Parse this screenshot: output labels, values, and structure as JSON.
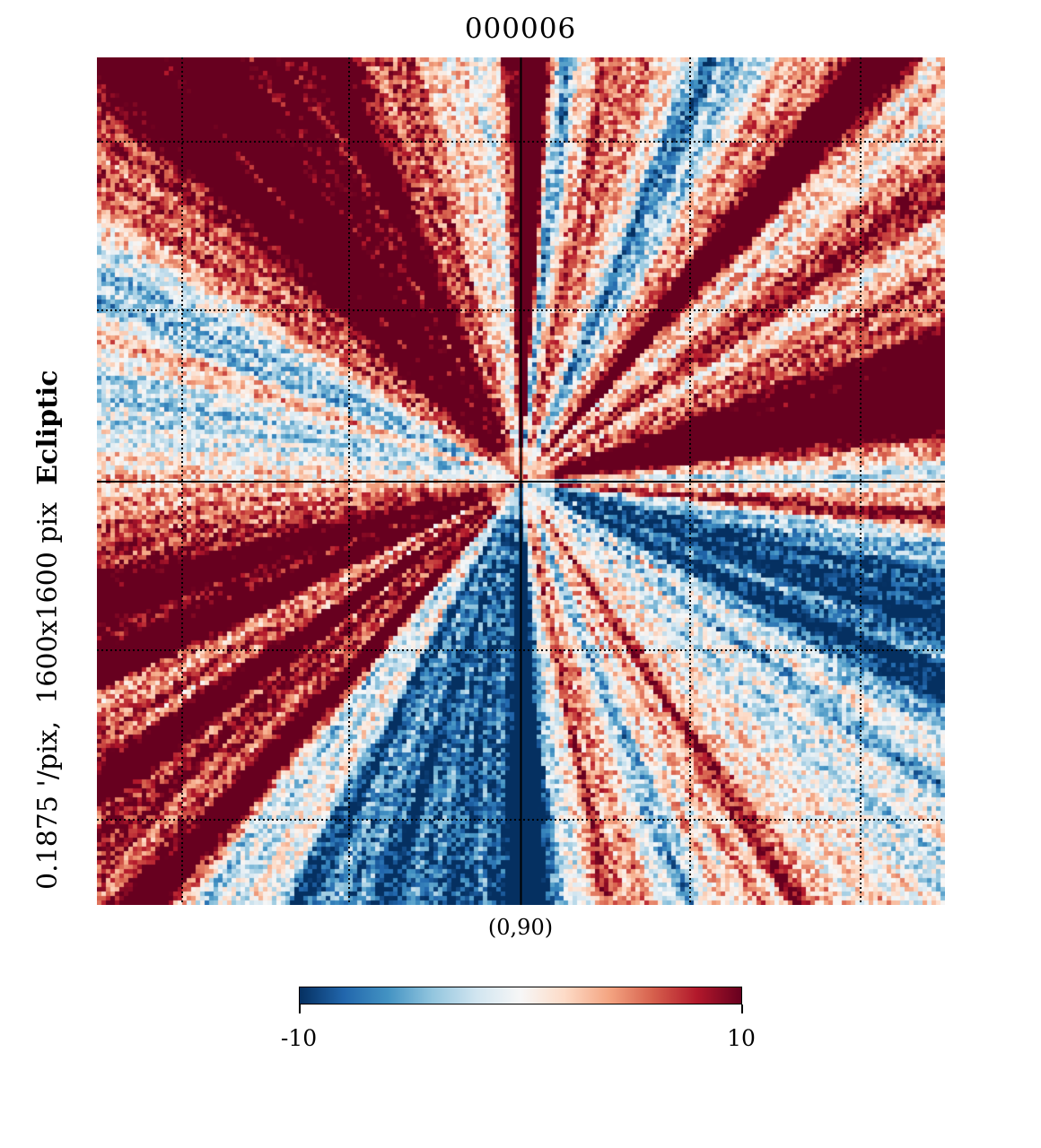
{
  "chart_data": {
    "type": "heatmap",
    "title": "000006",
    "projection_center": "(0,90)",
    "coord_system": "Ecliptic",
    "resolution": "0.1875 '/pix,",
    "size": "1600x1600 pix",
    "colormap": "RdBu_r",
    "value_range": [
      -10,
      10
    ],
    "colorbar": {
      "min_label": "-10",
      "max_label": "10",
      "min": -10,
      "max": 10
    },
    "graticule": true,
    "colors": {
      "min": "#053061",
      "mid": "#f7f7f7",
      "max": "#67001f"
    }
  }
}
